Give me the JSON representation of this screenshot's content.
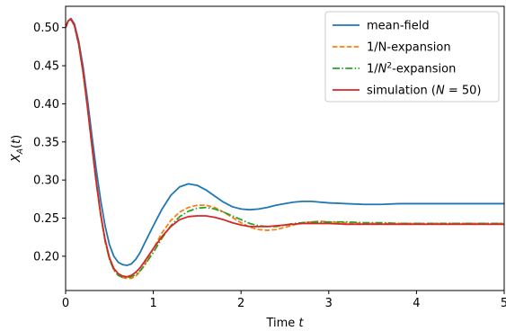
{
  "chart_data": {
    "type": "line",
    "xlabel": "Time t",
    "ylabel": "X_A(t)",
    "xlim": [
      0,
      5
    ],
    "ylim": [
      0.155,
      0.528
    ],
    "xticks": [
      0,
      1,
      2,
      3,
      4,
      5
    ],
    "yticks": [
      0.2,
      0.25,
      0.3,
      0.35,
      0.4,
      0.45,
      0.5
    ],
    "xtick_labels": [
      "0",
      "1",
      "2",
      "3",
      "4",
      "5"
    ],
    "ytick_labels": [
      "0.20",
      "0.25",
      "0.30",
      "0.35",
      "0.40",
      "0.45",
      "0.50"
    ],
    "grid": false,
    "legend_position": "top-right",
    "series": [
      {
        "name": "mean-field",
        "color": "#1f77b4",
        "style": "solid",
        "x": [
          0,
          0.03,
          0.06,
          0.1,
          0.15,
          0.2,
          0.25,
          0.3,
          0.35,
          0.4,
          0.45,
          0.5,
          0.55,
          0.6,
          0.65,
          0.7,
          0.75,
          0.8,
          0.85,
          0.9,
          1.0,
          1.1,
          1.2,
          1.3,
          1.4,
          1.5,
          1.6,
          1.7,
          1.8,
          1.9,
          2.0,
          2.1,
          2.2,
          2.3,
          2.4,
          2.5,
          2.6,
          2.7,
          2.8,
          2.9,
          3.0,
          3.2,
          3.4,
          3.6,
          3.8,
          4.0,
          4.5,
          5.0
        ],
        "y": [
          0.5,
          0.509,
          0.512,
          0.505,
          0.482,
          0.448,
          0.405,
          0.358,
          0.313,
          0.273,
          0.24,
          0.215,
          0.2,
          0.192,
          0.189,
          0.188,
          0.19,
          0.196,
          0.205,
          0.217,
          0.24,
          0.262,
          0.28,
          0.291,
          0.295,
          0.293,
          0.287,
          0.279,
          0.271,
          0.265,
          0.262,
          0.261,
          0.262,
          0.264,
          0.267,
          0.269,
          0.271,
          0.272,
          0.272,
          0.271,
          0.27,
          0.269,
          0.268,
          0.268,
          0.269,
          0.269,
          0.269,
          0.269
        ]
      },
      {
        "name": "1/N-expansion",
        "color": "#ff7f0e",
        "style": "dashed",
        "x": [
          0,
          0.03,
          0.06,
          0.1,
          0.15,
          0.2,
          0.25,
          0.3,
          0.35,
          0.4,
          0.45,
          0.5,
          0.55,
          0.6,
          0.65,
          0.7,
          0.75,
          0.8,
          0.85,
          0.9,
          1.0,
          1.1,
          1.2,
          1.3,
          1.4,
          1.5,
          1.6,
          1.7,
          1.8,
          1.9,
          2.0,
          2.1,
          2.2,
          2.3,
          2.4,
          2.5,
          2.6,
          2.7,
          2.8,
          2.9,
          3.0,
          3.2,
          3.4,
          3.6,
          3.8,
          4.0,
          4.5,
          5.0
        ],
        "y": [
          0.5,
          0.509,
          0.511,
          0.503,
          0.478,
          0.441,
          0.395,
          0.345,
          0.296,
          0.254,
          0.22,
          0.196,
          0.182,
          0.175,
          0.172,
          0.171,
          0.171,
          0.174,
          0.18,
          0.189,
          0.21,
          0.231,
          0.247,
          0.258,
          0.264,
          0.267,
          0.267,
          0.264,
          0.258,
          0.251,
          0.244,
          0.238,
          0.235,
          0.234,
          0.235,
          0.238,
          0.241,
          0.244,
          0.245,
          0.246,
          0.245,
          0.244,
          0.243,
          0.243,
          0.243,
          0.243,
          0.243,
          0.243
        ]
      },
      {
        "name": "1/N²-expansion",
        "color": "#2ca02c",
        "style": "dashdot",
        "x": [
          0,
          0.03,
          0.06,
          0.1,
          0.15,
          0.2,
          0.25,
          0.3,
          0.35,
          0.4,
          0.45,
          0.5,
          0.55,
          0.6,
          0.65,
          0.7,
          0.75,
          0.8,
          0.85,
          0.9,
          1.0,
          1.1,
          1.2,
          1.3,
          1.4,
          1.5,
          1.6,
          1.7,
          1.8,
          1.9,
          2.0,
          2.1,
          2.2,
          2.3,
          2.4,
          2.5,
          2.6,
          2.7,
          2.8,
          2.9,
          3.0,
          3.2,
          3.4,
          3.6,
          3.8,
          4.0,
          4.5,
          5.0
        ],
        "y": [
          0.5,
          0.509,
          0.511,
          0.503,
          0.478,
          0.441,
          0.395,
          0.345,
          0.296,
          0.254,
          0.22,
          0.196,
          0.182,
          0.175,
          0.172,
          0.172,
          0.173,
          0.176,
          0.181,
          0.188,
          0.205,
          0.224,
          0.24,
          0.252,
          0.259,
          0.263,
          0.264,
          0.262,
          0.258,
          0.253,
          0.248,
          0.243,
          0.24,
          0.239,
          0.239,
          0.241,
          0.243,
          0.244,
          0.245,
          0.245,
          0.245,
          0.245,
          0.244,
          0.244,
          0.243,
          0.243,
          0.243,
          0.243
        ]
      },
      {
        "name": "simulation (N = 50)",
        "color": "#d62728",
        "style": "solid",
        "x": [
          0,
          0.03,
          0.06,
          0.1,
          0.15,
          0.2,
          0.25,
          0.3,
          0.35,
          0.4,
          0.45,
          0.5,
          0.55,
          0.6,
          0.65,
          0.7,
          0.75,
          0.8,
          0.85,
          0.9,
          1.0,
          1.1,
          1.2,
          1.3,
          1.4,
          1.5,
          1.6,
          1.7,
          1.8,
          1.9,
          2.0,
          2.1,
          2.2,
          2.3,
          2.4,
          2.5,
          2.6,
          2.7,
          2.8,
          2.9,
          3.0,
          3.2,
          3.4,
          3.6,
          3.8,
          4.0,
          4.5,
          5.0
        ],
        "y": [
          0.5,
          0.509,
          0.511,
          0.503,
          0.478,
          0.441,
          0.395,
          0.345,
          0.297,
          0.255,
          0.222,
          0.198,
          0.184,
          0.177,
          0.174,
          0.173,
          0.175,
          0.179,
          0.185,
          0.193,
          0.21,
          0.226,
          0.239,
          0.248,
          0.252,
          0.253,
          0.253,
          0.251,
          0.248,
          0.244,
          0.241,
          0.239,
          0.239,
          0.239,
          0.24,
          0.241,
          0.242,
          0.243,
          0.243,
          0.243,
          0.243,
          0.242,
          0.242,
          0.242,
          0.242,
          0.242,
          0.242,
          0.242
        ]
      }
    ]
  }
}
